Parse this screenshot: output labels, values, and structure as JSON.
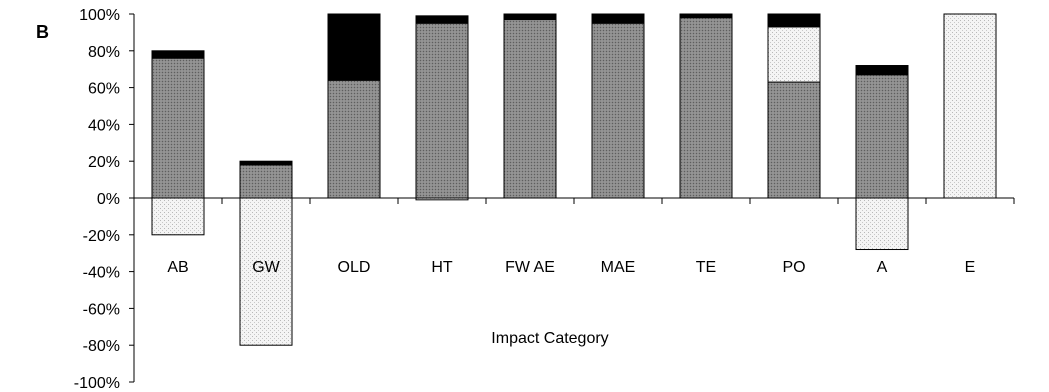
{
  "panel_label": "B",
  "chart_data": {
    "type": "bar",
    "stacked": true,
    "title": "",
    "xlabel": "Impact Category",
    "ylabel": "",
    "ylim": [
      -100,
      100
    ],
    "yticks": [
      "100%",
      "80%",
      "60%",
      "40%",
      "20%",
      "0%",
      "-20%",
      "-40%",
      "-60%",
      "-80%",
      "-100%"
    ],
    "ytick_values": [
      100,
      80,
      60,
      40,
      20,
      0,
      -20,
      -40,
      -60,
      -80,
      -100
    ],
    "categories": [
      "AB",
      "GW",
      "OLD",
      "HT",
      "FWAE",
      "MAE",
      "TE",
      "PO",
      "A",
      "E"
    ],
    "category_labels": [
      "AB",
      "GW",
      "OLD",
      "HT",
      "FW AE",
      "MAE",
      "TE",
      "PO",
      "A",
      "E"
    ],
    "series": [
      {
        "color": "#808080",
        "pattern": "gray-dots",
        "values": [
          76,
          18,
          64,
          95,
          97,
          95,
          98,
          63,
          67,
          0
        ]
      },
      {
        "color": "#ffffff",
        "pattern": "light-dots",
        "values": [
          -20,
          -80,
          0,
          -1,
          0,
          0,
          0,
          30,
          -28,
          100
        ]
      },
      {
        "color": "#000000",
        "pattern": "solid",
        "values": [
          4,
          2,
          36,
          4,
          3,
          5,
          2,
          7,
          5,
          0
        ]
      }
    ],
    "grid": false,
    "legend": "none"
  }
}
